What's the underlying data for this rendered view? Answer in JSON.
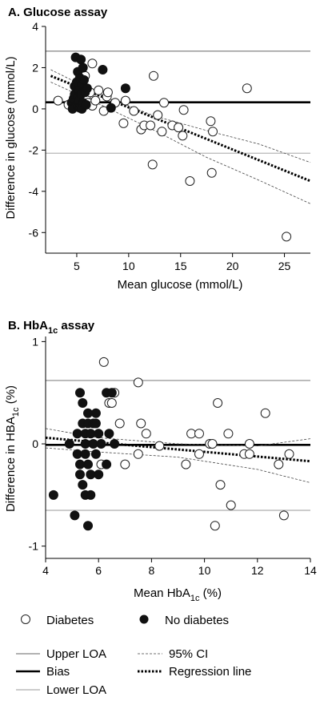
{
  "chart_data": [
    {
      "type": "scatter",
      "title": "A. Glucose assay",
      "xlabel": "Mean glucose (mmol/L)",
      "ylabel": "Difference in glucose (mmol/L)",
      "xlim": [
        2,
        27.5
      ],
      "ylim": [
        -7,
        4
      ],
      "x_ticks": [
        5,
        10,
        15,
        20,
        25
      ],
      "y_ticks": [
        -6,
        -4,
        -2,
        0,
        2,
        4
      ],
      "upper_loa": 2.8,
      "bias": 0.32,
      "lower_loa": -2.15,
      "regression_line": [
        [
          2.5,
          1.6
        ],
        [
          27.5,
          -3.5
        ]
      ],
      "ci_upper": [
        [
          2.5,
          1.9
        ],
        [
          7.5,
          0.65
        ],
        [
          12.5,
          -0.35
        ],
        [
          17.5,
          -1.05
        ],
        [
          22.5,
          -1.7
        ],
        [
          27.5,
          -2.6
        ]
      ],
      "ci_lower": [
        [
          2.5,
          1.3
        ],
        [
          7.5,
          0.15
        ],
        [
          12.5,
          -1.05
        ],
        [
          17.5,
          -2.35
        ],
        [
          22.5,
          -3.45
        ],
        [
          27.5,
          -4.6
        ]
      ],
      "series": [
        {
          "name": "Diabetes",
          "marker": "open",
          "points": [
            [
              3.2,
              0.4
            ],
            [
              4.2,
              0.2
            ],
            [
              4.8,
              0.6
            ],
            [
              5.1,
              0.2
            ],
            [
              5.4,
              0.9
            ],
            [
              5.6,
              1.4
            ],
            [
              5.9,
              0.6
            ],
            [
              6.1,
              0.3
            ],
            [
              6.3,
              0.8
            ],
            [
              6.5,
              0.15
            ],
            [
              6.8,
              0.4
            ],
            [
              7.1,
              0.9
            ],
            [
              6.5,
              2.2
            ],
            [
              5.8,
              1.6
            ],
            [
              7.6,
              -0.1
            ],
            [
              7.9,
              0.6
            ],
            [
              8.0,
              0.8
            ],
            [
              8.7,
              0.3
            ],
            [
              9.5,
              -0.7
            ],
            [
              9.7,
              0.4
            ],
            [
              10.5,
              -0.1
            ],
            [
              11.2,
              -1.0
            ],
            [
              11.5,
              -0.8
            ],
            [
              12.1,
              -0.8
            ],
            [
              12.3,
              -2.7
            ],
            [
              12.4,
              1.6
            ],
            [
              12.8,
              -0.3
            ],
            [
              13.2,
              -1.1
            ],
            [
              13.4,
              0.3
            ],
            [
              14.2,
              -0.8
            ],
            [
              14.8,
              -0.9
            ],
            [
              15.2,
              -1.3
            ],
            [
              15.3,
              -0.05
            ],
            [
              15.9,
              -3.5
            ],
            [
              17.9,
              -0.6
            ],
            [
              18.0,
              -3.1
            ],
            [
              18.1,
              -1.1
            ],
            [
              21.4,
              1.0
            ],
            [
              25.2,
              -6.2
            ]
          ]
        },
        {
          "name": "No diabetes",
          "marker": "filled",
          "points": [
            [
              4.5,
              0.3
            ],
            [
              4.6,
              0.0
            ],
            [
              4.7,
              0.5
            ],
            [
              4.8,
              1.1
            ],
            [
              4.8,
              0.7
            ],
            [
              4.9,
              2.5
            ],
            [
              5.0,
              0.2
            ],
            [
              5.0,
              1.3
            ],
            [
              5.1,
              1.8
            ],
            [
              5.1,
              0.6
            ],
            [
              5.1,
              0.1
            ],
            [
              5.2,
              0.9
            ],
            [
              5.2,
              0.4
            ],
            [
              5.3,
              1.5
            ],
            [
              5.3,
              0.05
            ],
            [
              5.4,
              0.7
            ],
            [
              5.4,
              2.4
            ],
            [
              5.5,
              1.2
            ],
            [
              5.5,
              0.0
            ],
            [
              5.6,
              0.3
            ],
            [
              5.6,
              2.0
            ],
            [
              5.7,
              1.4
            ],
            [
              5.8,
              0.8
            ],
            [
              5.9,
              0.2
            ],
            [
              6.0,
              1.0
            ],
            [
              7.5,
              1.9
            ],
            [
              8.3,
              0.05
            ],
            [
              9.7,
              1.0
            ]
          ]
        }
      ]
    },
    {
      "type": "scatter",
      "title": "B. HbA",
      "title_sub": "1c",
      "title_rest": " assay",
      "xlabel": "Mean HbA",
      "xlabel_sub": "1c",
      "xlabel_rest": " (%)",
      "ylabel": "Difference in HBA",
      "ylabel_sub": "1c",
      "ylabel_rest": " (%)",
      "xlim": [
        4,
        14
      ],
      "ylim": [
        -1.12,
        1.05
      ],
      "x_ticks": [
        4,
        6,
        8,
        10,
        12,
        14
      ],
      "y_ticks": [
        -1,
        0,
        1
      ],
      "upper_loa": 0.62,
      "bias": -0.01,
      "lower_loa": -0.65,
      "regression_line": [
        [
          4.0,
          0.06
        ],
        [
          14.0,
          -0.17
        ]
      ],
      "ci_upper": [
        [
          4.0,
          0.15
        ],
        [
          6.0,
          0.06
        ],
        [
          9.0,
          0.0
        ],
        [
          12.0,
          -0.02
        ],
        [
          14.0,
          0.05
        ]
      ],
      "ci_lower": [
        [
          4.0,
          -0.04
        ],
        [
          6.0,
          -0.08
        ],
        [
          9.0,
          -0.13
        ],
        [
          12.0,
          -0.25
        ],
        [
          14.0,
          -0.38
        ]
      ],
      "series": [
        {
          "name": "Diabetes",
          "marker": "open",
          "points": [
            [
              6.2,
              0.8
            ],
            [
              6.4,
              0.4
            ],
            [
              6.5,
              0.4
            ],
            [
              6.6,
              0.5
            ],
            [
              6.1,
              -0.2
            ],
            [
              6.8,
              0.2
            ],
            [
              7.0,
              -0.2
            ],
            [
              7.5,
              0.6
            ],
            [
              7.6,
              0.2
            ],
            [
              7.5,
              -0.1
            ],
            [
              7.8,
              0.1
            ],
            [
              8.3,
              -0.02
            ],
            [
              9.3,
              -0.2
            ],
            [
              9.5,
              0.1
            ],
            [
              9.8,
              0.1
            ],
            [
              9.8,
              -0.1
            ],
            [
              10.2,
              0.0
            ],
            [
              10.3,
              0.0
            ],
            [
              10.4,
              -0.8
            ],
            [
              10.5,
              0.4
            ],
            [
              10.6,
              -0.4
            ],
            [
              10.9,
              0.1
            ],
            [
              11.0,
              -0.6
            ],
            [
              11.5,
              -0.1
            ],
            [
              11.7,
              -0.1
            ],
            [
              11.7,
              0.0
            ],
            [
              12.3,
              0.3
            ],
            [
              12.8,
              -0.2
            ],
            [
              13.0,
              -0.7
            ],
            [
              13.2,
              -0.1
            ]
          ]
        },
        {
          "name": "No diabetes",
          "marker": "filled",
          "points": [
            [
              4.3,
              -0.5
            ],
            [
              4.9,
              0.0
            ],
            [
              5.1,
              -0.7
            ],
            [
              5.2,
              -0.1
            ],
            [
              5.2,
              0.1
            ],
            [
              5.3,
              -0.2
            ],
            [
              5.3,
              -0.3
            ],
            [
              5.3,
              0.5
            ],
            [
              5.4,
              0.2
            ],
            [
              5.4,
              -0.4
            ],
            [
              5.4,
              0.4
            ],
            [
              5.5,
              0.0
            ],
            [
              5.5,
              0.1
            ],
            [
              5.5,
              -0.1
            ],
            [
              5.5,
              -0.5
            ],
            [
              5.6,
              0.3
            ],
            [
              5.6,
              -0.2
            ],
            [
              5.6,
              0.2
            ],
            [
              5.6,
              -0.8
            ],
            [
              5.7,
              -0.3
            ],
            [
              5.7,
              0.1
            ],
            [
              5.7,
              -0.5
            ],
            [
              5.8,
              0.2
            ],
            [
              5.8,
              0.0
            ],
            [
              5.9,
              0.3
            ],
            [
              5.9,
              -0.1
            ],
            [
              5.9,
              0.2
            ],
            [
              6.0,
              0.1
            ],
            [
              6.0,
              -0.3
            ],
            [
              6.1,
              0.0
            ],
            [
              6.3,
              0.5
            ],
            [
              6.3,
              -0.2
            ],
            [
              6.4,
              0.1
            ],
            [
              6.5,
              0.5
            ],
            [
              6.6,
              0.0
            ]
          ]
        }
      ]
    }
  ],
  "legend": {
    "diabetes": "Diabetes",
    "no_diabetes": "No diabetes",
    "upper_loa": "Upper LOA",
    "ci": "95% CI",
    "bias": "Bias",
    "regression": "Regression line",
    "lower_loa": "Lower LOA"
  }
}
